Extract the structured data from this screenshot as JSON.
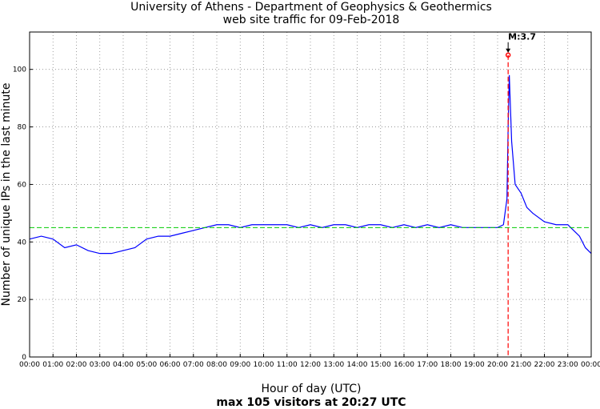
{
  "chart_data": {
    "type": "line",
    "title": "University of Athens - Department of Geophysics & Geothermics",
    "subtitle": "web site traffic for 09-Feb-2018",
    "xlabel": "Hour of day (UTC)",
    "ylabel": "Number of unique IPs in the last minute",
    "footer": "max 105 visitors at 20:27 UTC",
    "x_ticks": [
      "00:00",
      "01:00",
      "02:00",
      "03:00",
      "04:00",
      "05:00",
      "06:00",
      "07:00",
      "08:00",
      "09:00",
      "10:00",
      "11:00",
      "12:00",
      "13:00",
      "14:00",
      "15:00",
      "16:00",
      "17:00",
      "18:00",
      "19:00",
      "20:00",
      "21:00",
      "22:00",
      "23:00",
      "00:00"
    ],
    "y_ticks": [
      0,
      20,
      40,
      60,
      80,
      100
    ],
    "xlim": [
      0,
      24
    ],
    "ylim": [
      0,
      113
    ],
    "grid": true,
    "series": [
      {
        "color": "#0000ff",
        "x": [
          0,
          0.5,
          1,
          1.5,
          2,
          2.5,
          3,
          3.5,
          4,
          4.5,
          5,
          5.5,
          6,
          6.5,
          7,
          7.5,
          8,
          8.5,
          9,
          9.5,
          10,
          10.5,
          11,
          11.5,
          12,
          12.5,
          13,
          13.5,
          14,
          14.5,
          15,
          15.5,
          16,
          16.5,
          17,
          17.5,
          18,
          18.5,
          19,
          19.5,
          20,
          20.25,
          20.4,
          20.45,
          20.5,
          20.6,
          20.75,
          21,
          21.25,
          21.5,
          22,
          22.5,
          23,
          23.25,
          23.5,
          23.75,
          24
        ],
        "y": [
          41,
          42,
          41,
          38,
          39,
          37,
          36,
          36,
          37,
          38,
          41,
          42,
          42,
          43,
          44,
          45,
          46,
          46,
          45,
          46,
          46,
          46,
          46,
          45,
          46,
          45,
          46,
          46,
          45,
          46,
          46,
          45,
          46,
          45,
          46,
          45,
          46,
          45,
          45,
          45,
          45,
          46,
          55,
          80,
          98,
          75,
          60,
          57,
          52,
          50,
          47,
          46,
          46,
          44,
          42,
          38,
          36
        ]
      },
      {
        "name": "",
        "color": "#00cc00",
        "style": "dashed",
        "x": [
          0,
          24
        ],
        "y": [
          45,
          45
        ]
      }
    ],
    "annotations": [
      {
        "text": "M:3.7",
        "x": 20.45,
        "y": 105,
        "color": "#000000",
        "marker_color": "#ff0000",
        "vline_color": "#ff0000"
      }
    ]
  }
}
